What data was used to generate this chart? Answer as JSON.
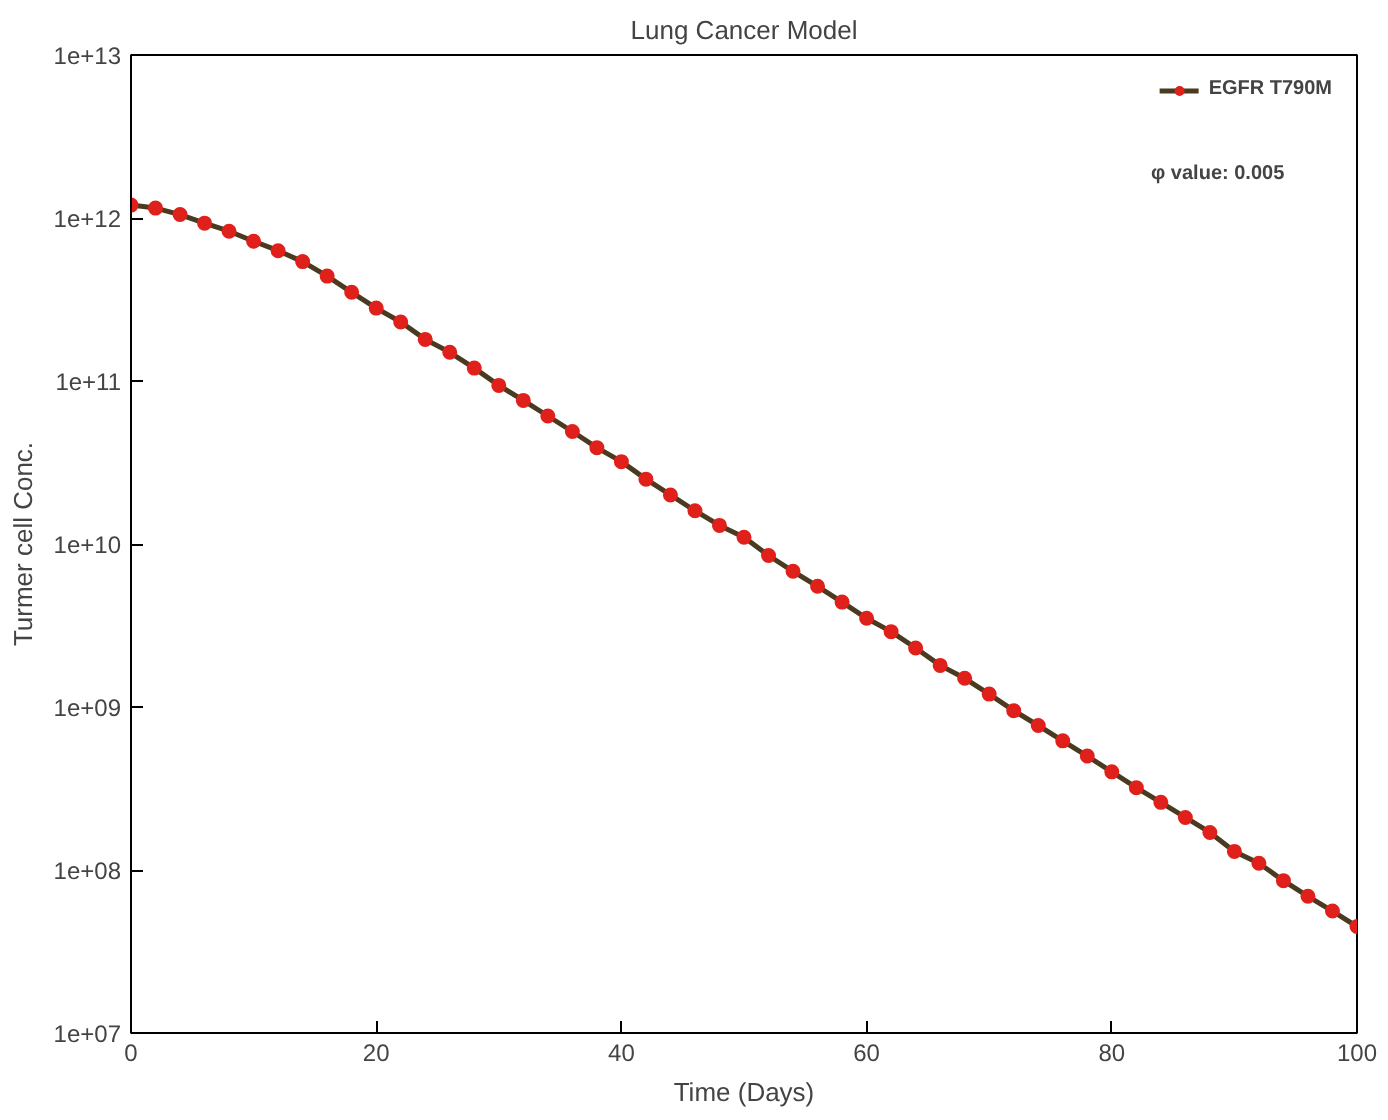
{
  "chart_data": {
    "type": "line",
    "title": "Lung Cancer Model",
    "xlabel": "Time (Days)",
    "ylabel": "Turmer cell Conc.",
    "x": [
      0,
      2,
      4,
      6,
      8,
      10,
      12,
      14,
      16,
      18,
      20,
      22,
      24,
      26,
      28,
      30,
      32,
      34,
      36,
      38,
      40,
      42,
      44,
      46,
      48,
      50,
      52,
      54,
      56,
      58,
      60,
      62,
      64,
      66,
      68,
      70,
      72,
      74,
      76,
      78,
      80,
      82,
      84,
      86,
      88,
      90,
      92,
      94,
      96,
      98,
      100
    ],
    "series": [
      {
        "name": "EGFR T790M",
        "color": "#e0201b",
        "values": [
          1200000000000.0,
          1150000000000.0,
          1050000000000.0,
          930000000000.0,
          830000000000.0,
          720000000000.0,
          630000000000.0,
          540000000000.0,
          440000000000.0,
          350000000000.0,
          280000000000.0,
          230000000000.0,
          180000000000.0,
          150000000000.0,
          120000000000.0,
          94000000000.0,
          76000000000.0,
          61000000000.0,
          49000000000.0,
          39000000000.0,
          32000000000.0,
          25000000000.0,
          20000000000.0,
          16000000000.0,
          13000000000.0,
          11000000000.0,
          8500000000.0,
          6800000000.0,
          5500000000.0,
          4400000000.0,
          3500000000.0,
          2900000000.0,
          2300000000.0,
          1800000000.0,
          1500000000.0,
          1200000000.0,
          950000000.0,
          770000000.0,
          620000000.0,
          500000000.0,
          400000000.0,
          320000000.0,
          260000000.0,
          210000000.0,
          170000000.0,
          130000000.0,
          110000000.0,
          86000000.0,
          69000000.0,
          56000000.0,
          45000000.0
        ]
      }
    ],
    "annotations": [
      "φ value: 0.005"
    ],
    "xlim": [
      0,
      100
    ],
    "xticks": [
      0,
      20,
      40,
      60,
      80,
      100
    ],
    "ylim": [
      10000000.0,
      10000000000000.0
    ],
    "yticks": [
      {
        "value": 10000000.0,
        "label": "1e+07"
      },
      {
        "value": 100000000.0,
        "label": "1e+08"
      },
      {
        "value": 1000000000.0,
        "label": "1e+09"
      },
      {
        "value": 10000000000.0,
        "label": "1e+10"
      },
      {
        "value": 100000000000.0,
        "label": "1e+11"
      },
      {
        "value": 1000000000000.0,
        "label": "1e+12"
      },
      {
        "value": 10000000000000.0,
        "label": "1e+13"
      }
    ],
    "log": "y",
    "grid": false,
    "legend": "top right",
    "marker": "circle",
    "line_style": "solid"
  }
}
